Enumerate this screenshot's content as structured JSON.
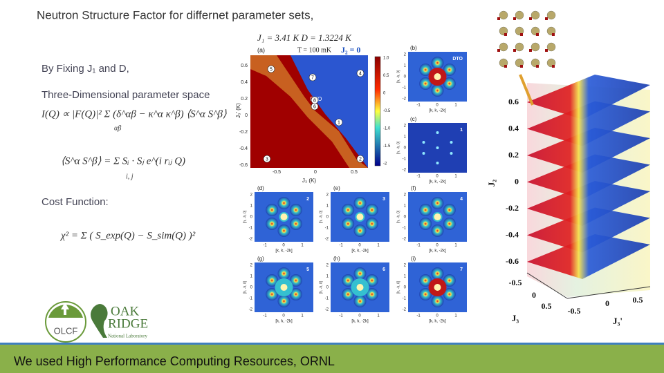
{
  "header": {
    "title": "Neutron Structure Factor for differnet parameter sets,"
  },
  "left": {
    "fixing": "By Fixing J₁ and D,",
    "space": "Three-Dimensional  parameter space",
    "formula1": "I(Q) ∝ |F(Q)|² Σ (δ^αβ − κ^α κ^β) ⟨S^α S^β⟩",
    "formula1_sub": "αβ",
    "formula2": "⟨S^α S^β⟩ = Σ Sᵢ · Sⱼ e^(i rᵢⱼ Q)",
    "formula2_sub": "i, j",
    "cost_label": "Cost Function:",
    "formula3": "χ² = Σ ( S_exp(Q) − S_sim(Q) )²"
  },
  "figure": {
    "params": "J₁ = 3.41 K     D = 1.3224 K",
    "temperature": "T = 100 mK",
    "j2": "J₂ = 0",
    "heatmap_label": "(a)",
    "heatmap_yticks": [
      "0.6",
      "0.4",
      "0.2",
      "0",
      "-0.2",
      "-0.4",
      "-0.6"
    ],
    "heatmap_xticks": [
      "-0.5",
      "0",
      "0.5"
    ],
    "heatmap_xlabel": "J₃ (K)",
    "heatmap_ylabel": "J₃' (K)",
    "colorbar_ticks": [
      "1.0",
      "0.5",
      "0",
      "-0.5",
      "-1.0",
      "-1.5",
      "-2"
    ],
    "dto": "DTO",
    "markers": [
      "1",
      "2",
      "3",
      "4",
      "5",
      "6",
      "7",
      "8"
    ],
    "panels": [
      "(b)",
      "(c)",
      "(d)",
      "(e)",
      "(f)",
      "(g)",
      "(h)",
      "(i)"
    ],
    "panel_markers": [
      "DTO",
      "1",
      "2",
      "3",
      "4",
      "5",
      "6",
      "7"
    ],
    "panel_yticks": [
      "2",
      "1",
      "0",
      "-1",
      "-2"
    ],
    "panel_xticks": [
      "-1",
      "0",
      "1"
    ],
    "panel_xlabel": "[k, k, -2k]",
    "panel_ylabel": "[h, -h, 0]"
  },
  "plot3d": {
    "zticks": [
      "0.6",
      "0.4",
      "0.2",
      "0",
      "-0.2",
      "-0.4",
      "-0.6"
    ],
    "zlabel": "J₂",
    "x_ticks": [
      "-0.5",
      "0",
      "0.5"
    ],
    "x_label": "J₃",
    "y_ticks": [
      "-0.5",
      "0",
      "0.5"
    ],
    "y_label": "J₃'"
  },
  "logos": {
    "olcf": "OLCF",
    "oak": "OAK",
    "ridge": "RIDGE",
    "lab": "National Laboratory"
  },
  "footer": {
    "text": "We used High Performance Computing Resources, ORNL"
  }
}
